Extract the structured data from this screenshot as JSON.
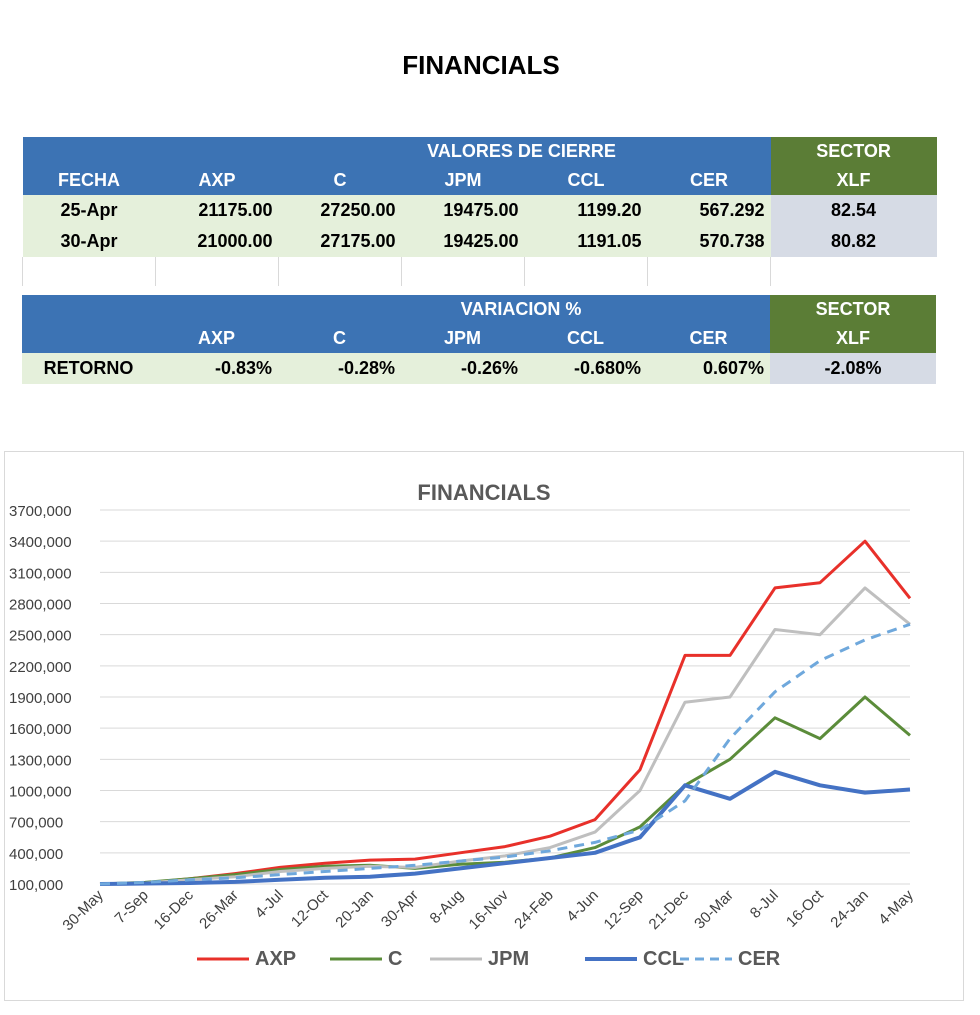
{
  "page_title": "FINANCIALS",
  "table_close": {
    "group_header": "VALORES DE CIERRE",
    "sector_header": "SECTOR",
    "columns": [
      "FECHA",
      "AXP",
      "C",
      "JPM",
      "CCL",
      "CER",
      "XLF"
    ],
    "rows": [
      [
        "25-Apr",
        "21175.00",
        "27250.00",
        "19475.00",
        "1199.20",
        "567.292",
        "82.54"
      ],
      [
        "30-Apr",
        "21000.00",
        "27175.00",
        "19425.00",
        "1191.05",
        "570.738",
        "80.82"
      ]
    ]
  },
  "table_var": {
    "group_header": "VARIACION %",
    "sector_header": "SECTOR",
    "columns": [
      "",
      "AXP",
      "C",
      "JPM",
      "CCL",
      "CER",
      "XLF"
    ],
    "rows": [
      [
        "RETORNO",
        "-0.83%",
        "-0.28%",
        "-0.26%",
        "-0.680%",
        "0.607%",
        "-2.08%"
      ]
    ]
  },
  "colors": {
    "header_blue": "#3c73b4",
    "sector_green": "#5b7d36",
    "row_green": "#e5f0db",
    "xlf_gray": "#d6dbe5"
  },
  "chart_data": {
    "type": "line",
    "title": "FINANCIALS",
    "ylim": [
      100000,
      3700000
    ],
    "yticks": [
      "3700,000",
      "3400,000",
      "3100,000",
      "2800,000",
      "2500,000",
      "2200,000",
      "1900,000",
      "1600,000",
      "1300,000",
      "1000,000",
      "700,000",
      "400,000",
      "100,000"
    ],
    "x": [
      "30-May",
      "7-Sep",
      "16-Dec",
      "26-Mar",
      "4-Jul",
      "12-Oct",
      "20-Jan",
      "30-Apr",
      "8-Aug",
      "16-Nov",
      "24-Feb",
      "4-Jun",
      "12-Sep",
      "21-Dec",
      "30-Mar",
      "8-Jul",
      "16-Oct",
      "24-Jan",
      "4-May"
    ],
    "grid": true,
    "legend": "bottom",
    "series": [
      {
        "name": "AXP",
        "color": "#e8302a",
        "style": "solid",
        "values": [
          100000,
          110000,
          150000,
          200000,
          260000,
          300000,
          330000,
          340000,
          400000,
          460000,
          560000,
          720000,
          1200000,
          2300000,
          2300000,
          2950000,
          3000000,
          3400000,
          2850000
        ]
      },
      {
        "name": "C",
        "color": "#5b8c3a",
        "style": "solid",
        "values": [
          100000,
          115000,
          150000,
          190000,
          240000,
          270000,
          280000,
          250000,
          290000,
          310000,
          350000,
          450000,
          650000,
          1050000,
          1300000,
          1700000,
          1500000,
          1900000,
          1530000
        ]
      },
      {
        "name": "JPM",
        "color": "#bfbfbf",
        "style": "solid",
        "values": [
          100000,
          110000,
          140000,
          170000,
          220000,
          250000,
          270000,
          260000,
          320000,
          370000,
          450000,
          600000,
          1000000,
          1850000,
          1900000,
          2550000,
          2500000,
          2950000,
          2600000
        ]
      },
      {
        "name": "CCL",
        "color": "#4472c4",
        "style": "solid",
        "values": [
          100000,
          105000,
          110000,
          120000,
          140000,
          160000,
          170000,
          200000,
          250000,
          300000,
          350000,
          400000,
          550000,
          1050000,
          920000,
          1180000,
          1050000,
          980000,
          1010000
        ]
      },
      {
        "name": "CER",
        "color": "#6fa8dc",
        "style": "dashed",
        "values": [
          100000,
          115000,
          140000,
          160000,
          190000,
          220000,
          250000,
          280000,
          320000,
          360000,
          420000,
          500000,
          620000,
          900000,
          1500000,
          1950000,
          2250000,
          2450000,
          2600000
        ]
      }
    ]
  }
}
